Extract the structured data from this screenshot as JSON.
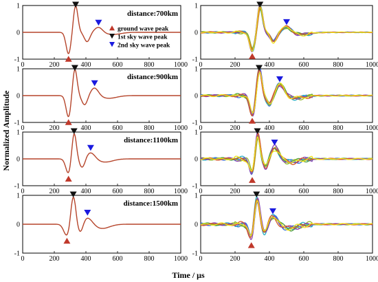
{
  "figure": {
    "ylabel": "Normalized Amplitude",
    "xlabel": "Time / μs"
  },
  "colors": {
    "model_trace": "#b5442a",
    "ground_marker": "#c0392b",
    "sky1_marker": "#111111",
    "sky2_marker": "#1a1adf",
    "obs_series": [
      "#2e6fd8",
      "#2bb0c6",
      "#4a9a3b",
      "#8fb82a",
      "#8a3fb0",
      "#d85a2a",
      "#f0e21c"
    ]
  },
  "legend": {
    "items": [
      {
        "label": "ground wave peak",
        "marker": "triangle-up",
        "color": "#c0392b"
      },
      {
        "label": "1st sky wave peak",
        "marker": "triangle-down",
        "color": "#111111"
      },
      {
        "label": "2nd sky wave peak",
        "marker": "triangle-down",
        "color": "#1a1adf"
      }
    ]
  },
  "chart_data": [
    {
      "type": "line",
      "panel": "left-1",
      "annotation": "distance:700km",
      "xlim": [
        0,
        1000
      ],
      "ylim": [
        -1,
        1
      ],
      "xticks": [
        0,
        200,
        400,
        600,
        800,
        1000
      ],
      "yticks": [
        -1,
        0,
        1
      ],
      "ground_peak": {
        "x": 290,
        "y": -0.8
      },
      "sky1_peak": {
        "x": 335,
        "y": 1.0
      },
      "sky2_peak": {
        "x": 480,
        "y": 0.2
      },
      "ground_width": 22,
      "sky1_width": 20,
      "sky2_width": 35,
      "tail": 0.08
    },
    {
      "type": "line",
      "panel": "left-2",
      "annotation": "distance:900km",
      "xlim": [
        0,
        1000
      ],
      "ylim": [
        -1,
        1
      ],
      "xticks": [
        0,
        200,
        400,
        600,
        800,
        1000
      ],
      "yticks": [
        -1,
        0,
        1
      ],
      "ground_peak": {
        "x": 290,
        "y": -0.8
      },
      "sky1_peak": {
        "x": 330,
        "y": 1.0
      },
      "sky2_peak": {
        "x": 455,
        "y": 0.3
      },
      "ground_width": 22,
      "sky1_width": 20,
      "sky2_width": 35,
      "tail": 0.1
    },
    {
      "type": "line",
      "panel": "left-3",
      "annotation": "distance:1100km",
      "xlim": [
        0,
        1000
      ],
      "ylim": [
        -1,
        1
      ],
      "xticks": [
        0,
        200,
        400,
        600,
        800,
        1000
      ],
      "yticks": [
        -1,
        0,
        1
      ],
      "ground_peak": {
        "x": 290,
        "y": -0.55
      },
      "sky1_peak": {
        "x": 325,
        "y": 1.0
      },
      "sky2_peak": {
        "x": 430,
        "y": 0.25
      },
      "ground_width": 24,
      "sky1_width": 20,
      "sky2_width": 40,
      "tail": 0.12
    },
    {
      "type": "line",
      "panel": "left-4",
      "annotation": "distance:1500km",
      "xlim": [
        0,
        1000
      ],
      "ylim": [
        -1,
        1
      ],
      "xticks": [
        0,
        200,
        400,
        600,
        800,
        1000
      ],
      "yticks": [
        -1,
        0,
        1
      ],
      "ground_peak": {
        "x": 280,
        "y": -0.4
      },
      "sky1_peak": {
        "x": 320,
        "y": 1.0
      },
      "sky2_peak": {
        "x": 410,
        "y": 0.25
      },
      "ground_width": 28,
      "sky1_width": 22,
      "sky2_width": 45,
      "tail": 0.15
    },
    {
      "type": "line",
      "panel": "right-1",
      "xlim": [
        0,
        1000
      ],
      "ylim": [
        -1,
        1
      ],
      "xticks": [
        0,
        200,
        400,
        600,
        800,
        1000
      ],
      "yticks": [
        -1,
        0,
        1
      ],
      "ground_peak": {
        "x": 300,
        "y": -0.7
      },
      "sky1_peak": {
        "x": 345,
        "y": 1.0
      },
      "sky2_peak": {
        "x": 500,
        "y": 0.22
      },
      "ground_width": 22,
      "sky1_width": 20,
      "sky2_width": 35,
      "tail": 0.08,
      "n_series": 7,
      "noise": 0.06
    },
    {
      "type": "line",
      "panel": "right-2",
      "xlim": [
        0,
        1000
      ],
      "ylim": [
        -1,
        1
      ],
      "xticks": [
        0,
        200,
        400,
        600,
        800,
        1000
      ],
      "yticks": [
        -1,
        0,
        1
      ],
      "ground_peak": {
        "x": 300,
        "y": -0.75
      },
      "sky1_peak": {
        "x": 340,
        "y": 1.0
      },
      "sky2_peak": {
        "x": 460,
        "y": 0.45
      },
      "ground_width": 22,
      "sky1_width": 20,
      "sky2_width": 35,
      "tail": 0.1,
      "n_series": 7,
      "noise": 0.08
    },
    {
      "type": "line",
      "panel": "right-3",
      "xlim": [
        0,
        1000
      ],
      "ylim": [
        -1,
        1
      ],
      "xticks": [
        0,
        200,
        400,
        600,
        800,
        1000
      ],
      "yticks": [
        -1,
        0,
        1
      ],
      "ground_peak": {
        "x": 300,
        "y": -0.6
      },
      "sky1_peak": {
        "x": 330,
        "y": 1.0
      },
      "sky2_peak": {
        "x": 430,
        "y": 0.45
      },
      "ground_width": 22,
      "sky1_width": 20,
      "sky2_width": 35,
      "tail": 0.12,
      "n_series": 7,
      "noise": 0.1
    },
    {
      "type": "line",
      "panel": "right-4",
      "xlim": [
        0,
        1000
      ],
      "ylim": [
        -1,
        1
      ],
      "xticks": [
        0,
        200,
        400,
        600,
        800,
        1000
      ],
      "yticks": [
        -1,
        0,
        1
      ],
      "ground_peak": {
        "x": 295,
        "y": -0.55
      },
      "sky1_peak": {
        "x": 325,
        "y": 1.0
      },
      "sky2_peak": {
        "x": 420,
        "y": 0.3
      },
      "ground_width": 24,
      "sky1_width": 22,
      "sky2_width": 40,
      "tail": 0.15,
      "n_series": 7,
      "noise": 0.1
    }
  ]
}
